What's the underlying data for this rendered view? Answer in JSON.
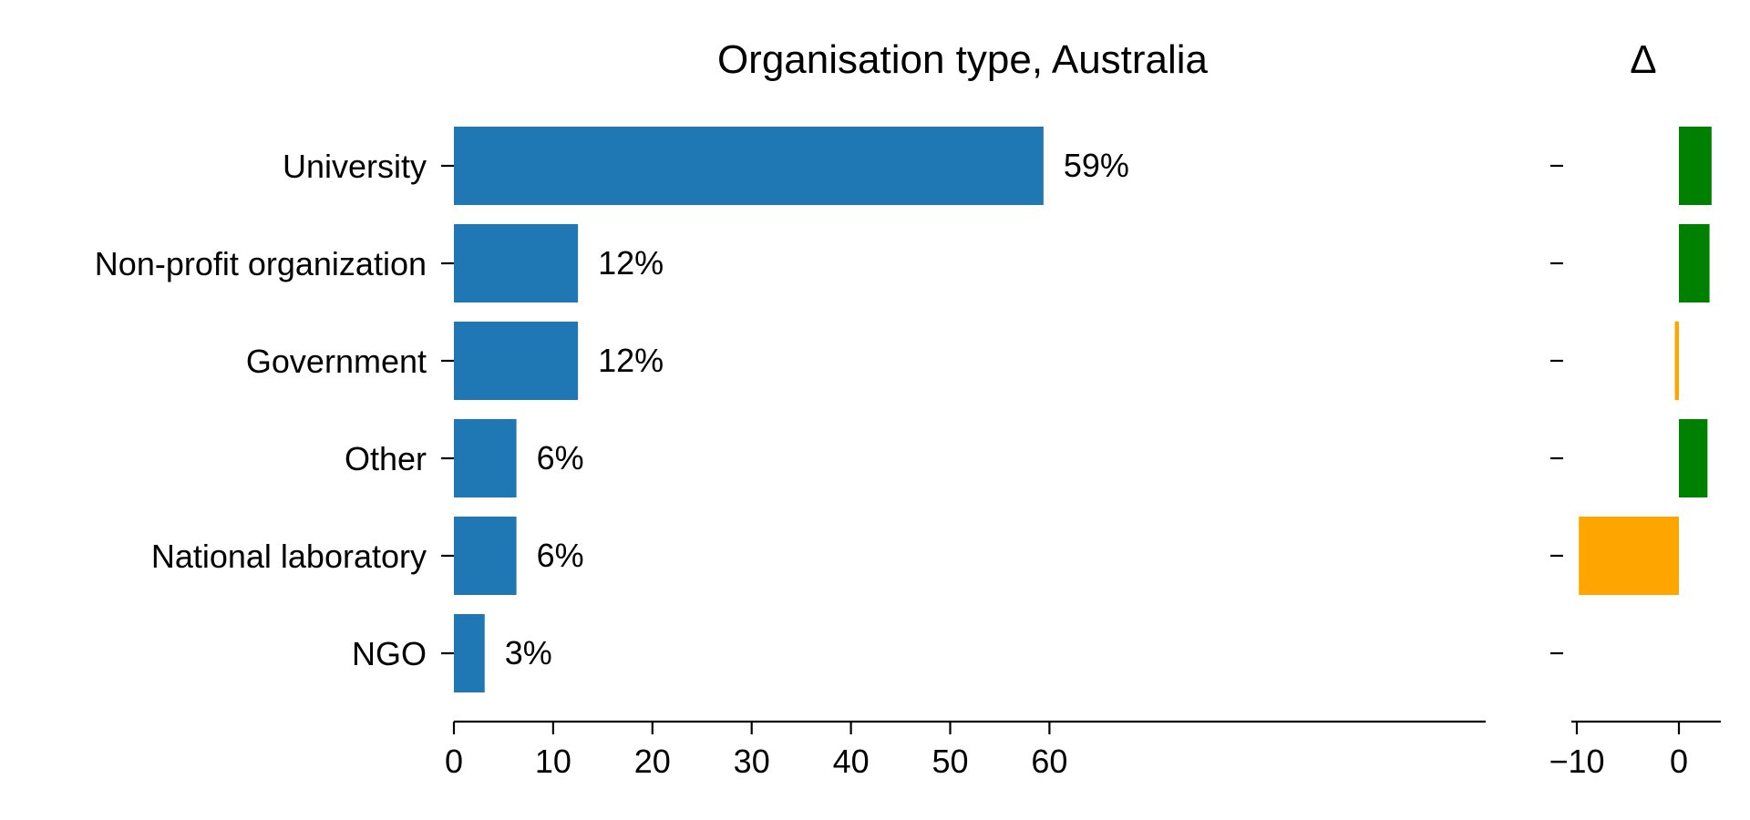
{
  "chart_data": [
    {
      "type": "bar",
      "orientation": "horizontal",
      "title": "Organisation type, Australia",
      "categories": [
        "University",
        "Non-profit organization",
        "Government",
        "Other",
        "National laboratory",
        "NGO"
      ],
      "values": [
        59.4,
        12.5,
        12.5,
        6.3,
        6.3,
        3.1
      ],
      "data_labels": [
        "59%",
        "12%",
        "12%",
        "6%",
        "6%",
        "3%"
      ],
      "xlim": [
        0,
        62.5
      ],
      "xticks": [
        0,
        10,
        20,
        30,
        40,
        50,
        60
      ],
      "xtick_labels": [
        "0",
        "10",
        "20",
        "30",
        "40",
        "50",
        "60"
      ],
      "bar_color": "#1f77b4",
      "xlabel": "",
      "ylabel": "",
      "grid": false
    },
    {
      "type": "bar",
      "orientation": "horizontal",
      "title": "Δ",
      "categories": [
        "University",
        "Non-profit organization",
        "Government",
        "Other",
        "National laboratory",
        "NGO"
      ],
      "values": [
        3.2,
        3.0,
        -0.4,
        2.8,
        -9.8,
        0
      ],
      "xlim": [
        -10.4,
        4.0
      ],
      "xticks": [
        -10,
        0
      ],
      "xtick_labels": [
        "−10",
        "0"
      ],
      "positive_color": "#008000",
      "negative_color": "#ffa500",
      "xlabel": "",
      "ylabel": "",
      "grid": false
    }
  ]
}
